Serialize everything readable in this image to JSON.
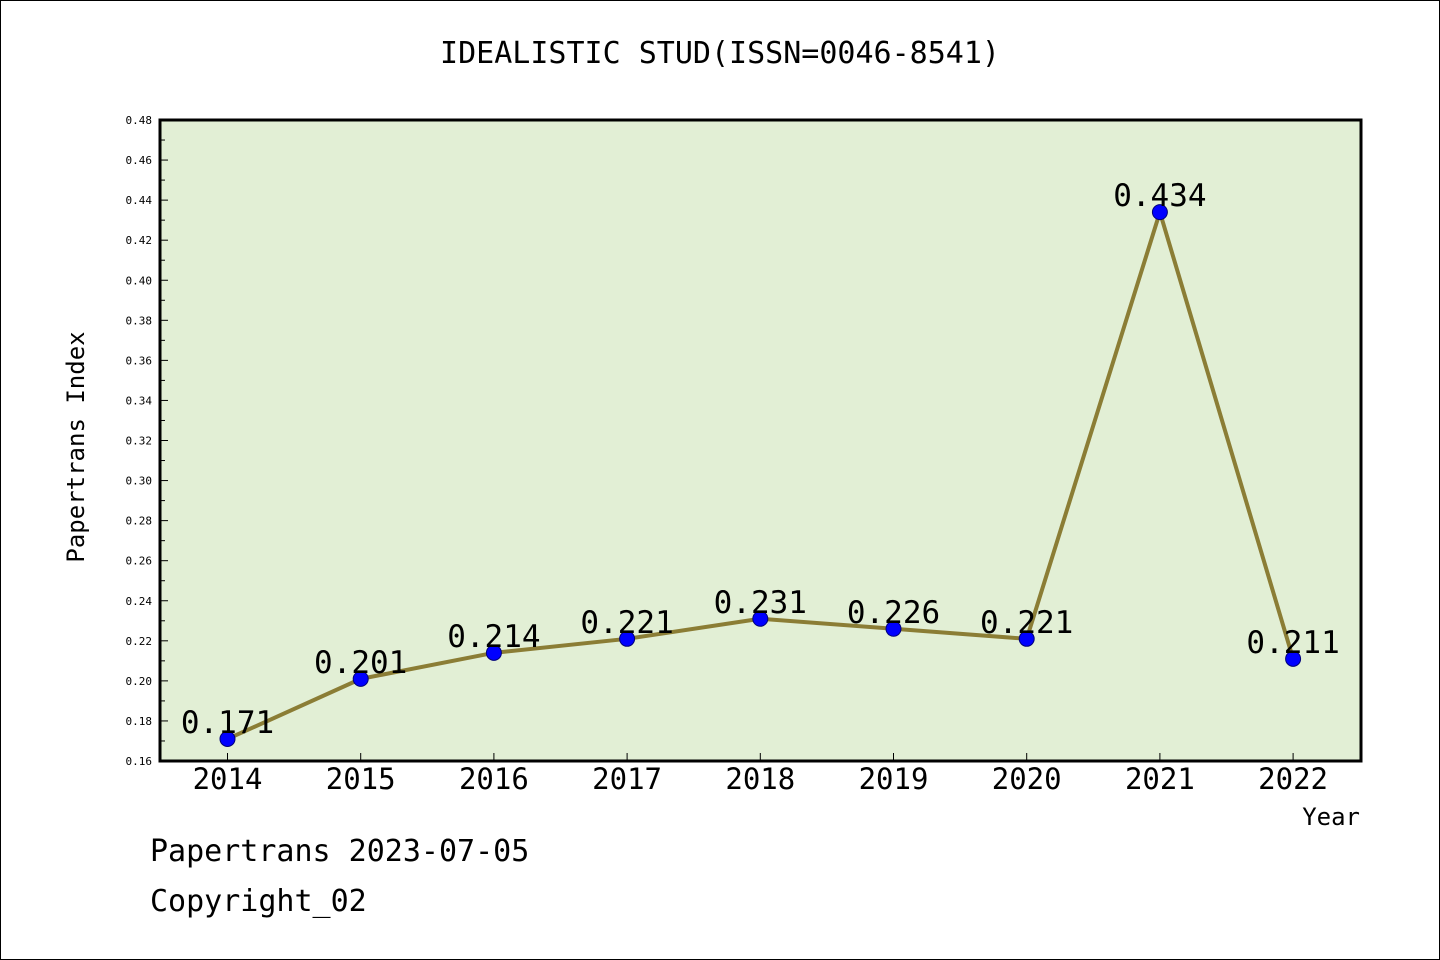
{
  "footer": {
    "date_text": "Papertrans 2023-07-05",
    "copyright_text": "Copyright_02"
  },
  "chart_data": {
    "type": "line",
    "title": "IDEALISTIC STUD(ISSN=0046-8541)",
    "xlabel": "Year",
    "ylabel": "Papertrans Index",
    "categories": [
      "2014",
      "2015",
      "2016",
      "2017",
      "2018",
      "2019",
      "2020",
      "2021",
      "2022"
    ],
    "series": [
      {
        "values": [
          0.171,
          0.201,
          0.214,
          0.221,
          0.231,
          0.226,
          0.221,
          0.434,
          0.211
        ],
        "data_labels": [
          "0.171",
          "0.201",
          "0.214",
          "0.221",
          "0.231",
          "0.226",
          "0.221",
          "0.434",
          "0.211"
        ]
      }
    ],
    "ylim": [
      0.16,
      0.48
    ],
    "y_ticks": [
      "0.16",
      "0.18",
      "0.20",
      "0.22",
      "0.24",
      "0.26",
      "0.28",
      "0.30",
      "0.32",
      "0.34",
      "0.36",
      "0.38",
      "0.40",
      "0.42",
      "0.44",
      "0.46",
      "0.48"
    ],
    "grid": false,
    "colors": {
      "plot_background": "#e2efd5",
      "line": "#8b7d35",
      "marker": "#0000ff",
      "axis": "#000000"
    }
  }
}
